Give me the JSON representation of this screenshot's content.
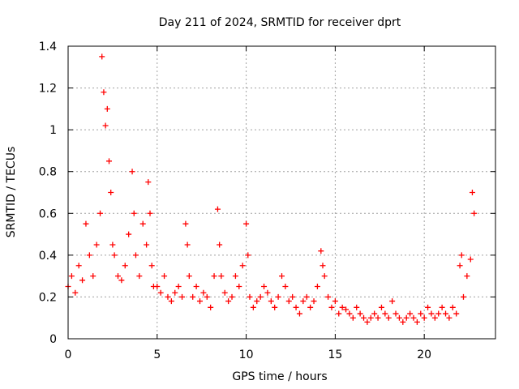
{
  "chart_data": {
    "type": "scatter",
    "title": "Day 211 of 2024, SRMTID for receiver dprt",
    "xlabel": "GPS time / hours",
    "ylabel": "SRMTID / TECUs",
    "xlim": [
      0,
      24
    ],
    "ylim": [
      0,
      1.4
    ],
    "xticks": [
      0,
      5,
      10,
      15,
      20
    ],
    "xtick_labels": [
      "0",
      "5",
      "10",
      "15",
      "20"
    ],
    "yticks": [
      0,
      0.2,
      0.4,
      0.6,
      0.8,
      1,
      1.2,
      1.4
    ],
    "ytick_labels": [
      "0",
      "0.2",
      "0.4",
      "0.6",
      "0.8",
      "1",
      "1.2",
      "1.4"
    ],
    "grid": true,
    "marker": "plus",
    "color": "#ff0000",
    "series": [
      {
        "name": "SRMTID",
        "x": [
          0.0,
          0.2,
          0.4,
          0.6,
          0.8,
          1.0,
          1.2,
          1.4,
          1.6,
          1.8,
          1.9,
          2.0,
          2.1,
          2.2,
          2.3,
          2.4,
          2.5,
          2.6,
          2.8,
          3.0,
          3.2,
          3.4,
          3.6,
          3.7,
          3.8,
          4.0,
          4.2,
          4.4,
          4.5,
          4.6,
          4.7,
          4.8,
          5.0,
          5.2,
          5.4,
          5.6,
          5.8,
          6.0,
          6.2,
          6.4,
          6.6,
          6.7,
          6.8,
          7.0,
          7.2,
          7.4,
          7.6,
          7.8,
          8.0,
          8.2,
          8.4,
          8.5,
          8.6,
          8.8,
          9.0,
          9.2,
          9.4,
          9.6,
          9.8,
          10.0,
          10.1,
          10.2,
          10.4,
          10.6,
          10.8,
          11.0,
          11.2,
          11.4,
          11.6,
          11.8,
          12.0,
          12.2,
          12.4,
          12.6,
          12.8,
          13.0,
          13.2,
          13.4,
          13.6,
          13.8,
          14.0,
          14.2,
          14.3,
          14.4,
          14.6,
          14.8,
          15.0,
          15.2,
          15.4,
          15.6,
          15.8,
          16.0,
          16.2,
          16.4,
          16.6,
          16.8,
          17.0,
          17.2,
          17.4,
          17.6,
          17.8,
          18.0,
          18.2,
          18.4,
          18.6,
          18.8,
          19.0,
          19.2,
          19.4,
          19.6,
          19.8,
          20.0,
          20.2,
          20.4,
          20.6,
          20.8,
          21.0,
          21.2,
          21.4,
          21.6,
          21.8,
          22.0,
          22.1,
          22.2,
          22.4,
          22.6,
          22.7,
          22.8
        ],
        "y": [
          0.25,
          0.3,
          0.22,
          0.35,
          0.28,
          0.55,
          0.4,
          0.3,
          0.45,
          0.6,
          1.35,
          1.18,
          1.02,
          1.1,
          0.85,
          0.7,
          0.45,
          0.4,
          0.3,
          0.28,
          0.35,
          0.5,
          0.8,
          0.6,
          0.4,
          0.3,
          0.55,
          0.45,
          0.75,
          0.6,
          0.35,
          0.25,
          0.25,
          0.22,
          0.3,
          0.2,
          0.18,
          0.22,
          0.25,
          0.2,
          0.55,
          0.45,
          0.3,
          0.2,
          0.25,
          0.18,
          0.22,
          0.2,
          0.15,
          0.3,
          0.62,
          0.45,
          0.3,
          0.22,
          0.18,
          0.2,
          0.3,
          0.25,
          0.35,
          0.55,
          0.4,
          0.2,
          0.15,
          0.18,
          0.2,
          0.25,
          0.22,
          0.18,
          0.15,
          0.2,
          0.3,
          0.25,
          0.18,
          0.2,
          0.15,
          0.12,
          0.18,
          0.2,
          0.15,
          0.18,
          0.25,
          0.42,
          0.35,
          0.3,
          0.2,
          0.15,
          0.18,
          0.12,
          0.15,
          0.14,
          0.12,
          0.1,
          0.15,
          0.12,
          0.1,
          0.08,
          0.1,
          0.12,
          0.1,
          0.15,
          0.12,
          0.1,
          0.18,
          0.12,
          0.1,
          0.08,
          0.1,
          0.12,
          0.1,
          0.08,
          0.12,
          0.1,
          0.15,
          0.12,
          0.1,
          0.12,
          0.15,
          0.12,
          0.1,
          0.15,
          0.12,
          0.35,
          0.4,
          0.2,
          0.3,
          0.38,
          0.7,
          0.6
        ]
      }
    ]
  }
}
